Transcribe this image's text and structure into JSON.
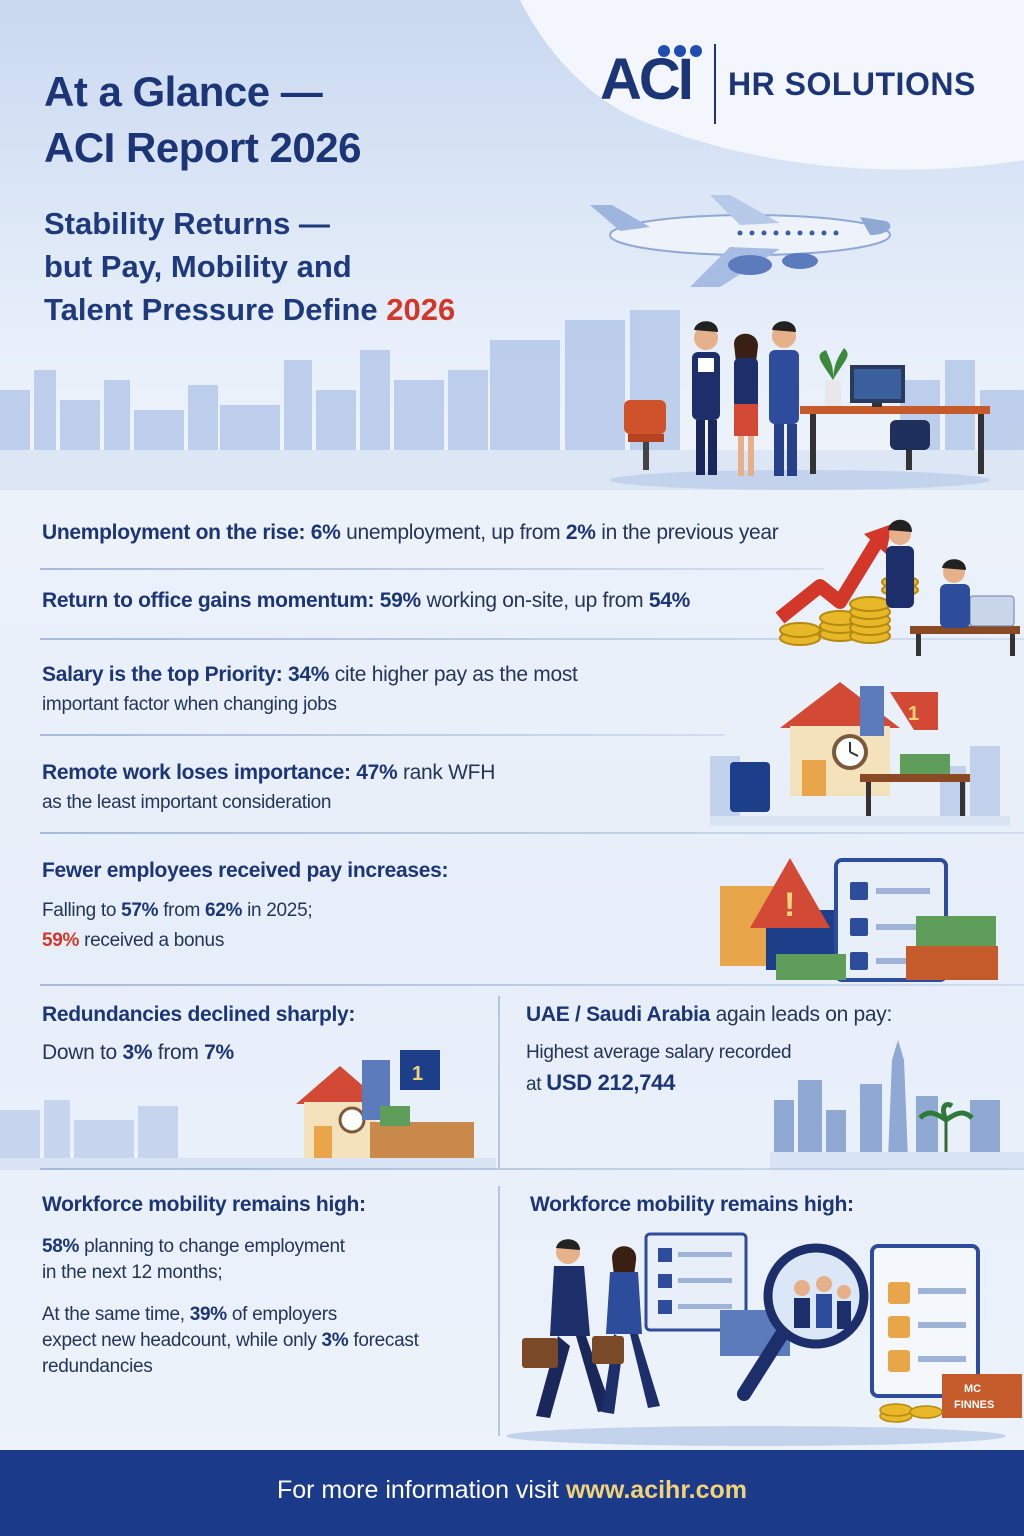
{
  "header": {
    "title_line1": "At a Glance —",
    "title_line2": "ACI Report 2026",
    "subtitle_line1": "Stability Returns —",
    "subtitle_line2": "but Pay, Mobility and",
    "subtitle_line3": "Talent Pressure Define ",
    "subtitle_year": "2026"
  },
  "logo": {
    "mark": "ACI",
    "text": "HR SOLUTIONS"
  },
  "stats": {
    "unemployment": {
      "heading": "Unemployment on the rise:",
      "value": "6%",
      "mid": " unemployment, up from ",
      "prev": "2%",
      "tail": " in the previous year"
    },
    "office": {
      "heading": "Return to office gains momentum:",
      "value": "59%",
      "mid": " working on-site, up from ",
      "prev": "54%"
    },
    "salary": {
      "heading": "Salary is the top Priority:",
      "value": "34%",
      "mid": " cite higher pay as the most",
      "line2": "important factor when changing jobs"
    },
    "remote": {
      "heading": "Remote work loses importance:",
      "value": "47%",
      "mid": " rank WFH",
      "line2": "as the least important consideration"
    },
    "pay": {
      "heading": "Fewer employees received pay increases:",
      "line2_a": "Falling to ",
      "value": "57%",
      "line2_b": " from ",
      "prev": "62%",
      "line2_c": " in 2025;",
      "bonus": "59%",
      "bonus_tail": " received a bonus"
    },
    "redundancies": {
      "heading": "Redundancies declined sharply:",
      "line2_a": "Down to ",
      "value": "3%",
      "line2_b": " from ",
      "prev": "7%"
    },
    "uae": {
      "heading_a": "UAE",
      "heading_sep": " / ",
      "heading_b": "Saudi Arabia",
      "heading_tail": " again leads on pay:",
      "line2": "Highest average salary recorded",
      "line3_a": "at ",
      "value": "USD 212,744"
    },
    "mobility_left": {
      "heading": "Workforce mobility remains high:",
      "value": "58%",
      "mid": " planning to change employment",
      "line2": "in the next 12 months;",
      "line3_a": "At the same time, ",
      "hire": "39%",
      "line3_b": " of employers",
      "line4_a": "expect new headcount, while only ",
      "redund": "3%",
      "line4_b": " forecast",
      "line5": "redundancies"
    },
    "mobility_right": {
      "heading": "Workforce mobility remains high:"
    }
  },
  "illustration_labels": {
    "badge_1": "1",
    "badge_2": "1",
    "sign": "MC\nFINNES"
  },
  "footer": {
    "text": "For more information visit ",
    "url": "www.acihr.com"
  },
  "colors": {
    "navy": "#1b3577",
    "accent_red": "#d2372a",
    "footer_bg": "#1b3a8a",
    "url_gold": "#f3d37a"
  }
}
